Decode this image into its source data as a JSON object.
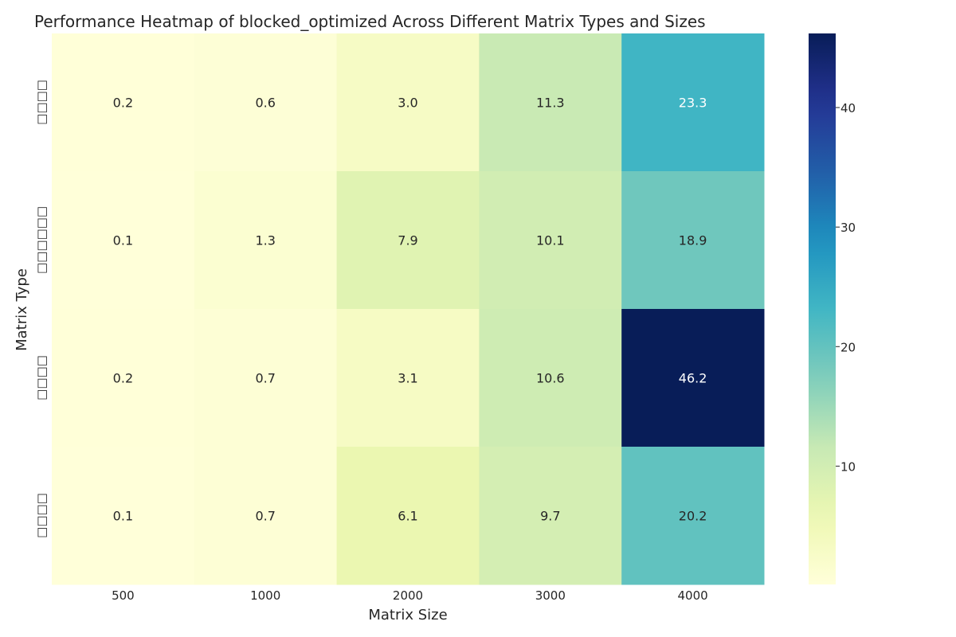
{
  "chart_data": {
    "type": "heatmap",
    "title": "Performance Heatmap of blocked_optimized Across Different Matrix Types and Sizes",
    "xlabel": "Matrix Size",
    "ylabel": "Matrix Type",
    "x_categories": [
      "500",
      "1000",
      "2000",
      "3000",
      "4000"
    ],
    "y_categories": [
      "□□□□",
      "□□□□□□",
      "□□□□",
      "□□□□"
    ],
    "values": [
      [
        0.2,
        0.6,
        3.0,
        11.3,
        23.3
      ],
      [
        0.1,
        1.3,
        7.9,
        10.1,
        18.9
      ],
      [
        0.2,
        0.7,
        3.1,
        10.6,
        46.2
      ],
      [
        0.1,
        0.7,
        6.1,
        9.7,
        20.2
      ]
    ],
    "value_format": "0.1f",
    "colormap": "YlGnBu",
    "color_range": [
      0.1,
      46.2
    ],
    "colorbar_ticks": [
      10,
      20,
      30,
      40
    ],
    "grid": false
  }
}
